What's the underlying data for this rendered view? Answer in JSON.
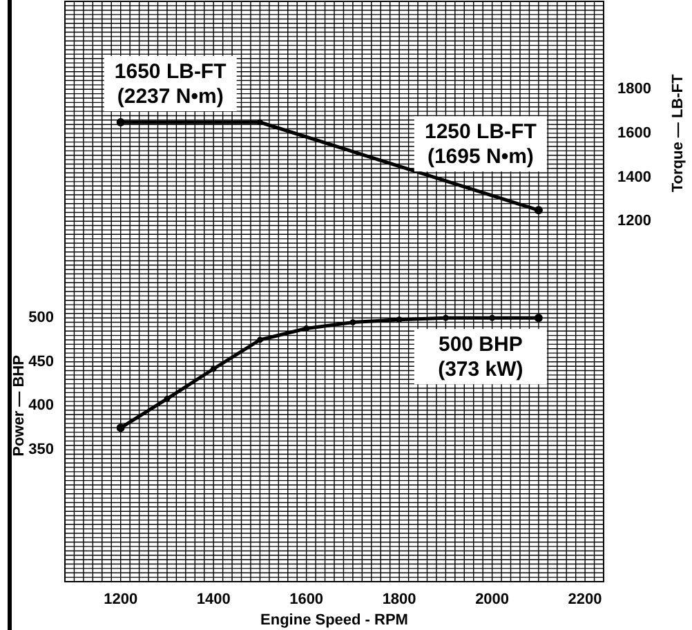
{
  "chart_data": {
    "type": "line",
    "xlabel": "Engine Speed - RPM",
    "ylabel": "Power — BHP",
    "y2label": "Torque — LB-FT",
    "xlim": [
      1080,
      2240
    ],
    "xticks": [
      1200,
      1400,
      1600,
      1800,
      2000,
      2200
    ],
    "ylim": [
      200,
      860
    ],
    "yticks": [
      350,
      400,
      450,
      500
    ],
    "y2lim": [
      -440,
      2200
    ],
    "y2ticks": [
      1200,
      1400,
      1600,
      1800
    ],
    "grid": true,
    "marker": "circle",
    "line_style": "solid",
    "series": [
      {
        "axis": "y2",
        "color": "#000000",
        "x": [
          1200,
          1500,
          2100
        ],
        "values": [
          1650,
          1650,
          1250
        ],
        "value_labels": [
          "1650 LB-FT\n(2237 N•m)",
          null,
          "1250 LB-FT\n(1695 N•m)"
        ]
      },
      {
        "axis": "y",
        "color": "#000000",
        "x": [
          1200,
          1300,
          1400,
          1500,
          1600,
          1700,
          1800,
          1900,
          2000,
          2100
        ],
        "values": [
          375,
          408,
          442,
          475,
          488,
          495,
          498,
          500,
          500,
          500
        ],
        "value_labels": [
          null,
          null,
          null,
          null,
          null,
          null,
          null,
          null,
          null,
          "500 BHP\n(373 kW)"
        ]
      }
    ]
  }
}
